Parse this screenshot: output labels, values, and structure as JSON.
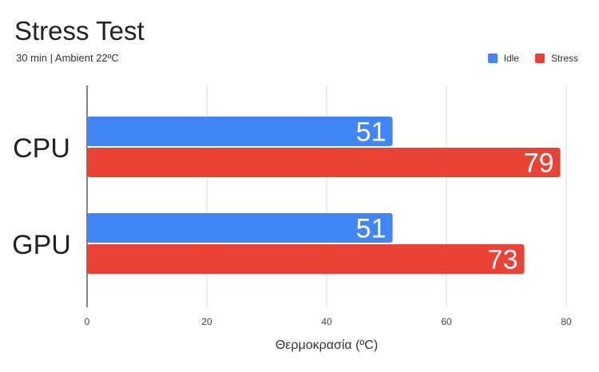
{
  "chart_data": {
    "type": "bar",
    "orientation": "horizontal",
    "title": "Stress Test",
    "subtitle": "30 min | Ambient 22ºC",
    "xlabel": "Θερμοκρασία (ºC)",
    "ylabel": "",
    "categories": [
      "CPU",
      "GPU"
    ],
    "series": [
      {
        "name": "Idle",
        "color": "#4285f4",
        "values": [
          51,
          51
        ]
      },
      {
        "name": "Stress",
        "color": "#ea4335",
        "values": [
          79,
          73
        ]
      }
    ],
    "xlim": [
      0,
      80
    ],
    "xticks": [
      0,
      20,
      40,
      60,
      80
    ],
    "grid": true,
    "legend_position": "top-right"
  }
}
